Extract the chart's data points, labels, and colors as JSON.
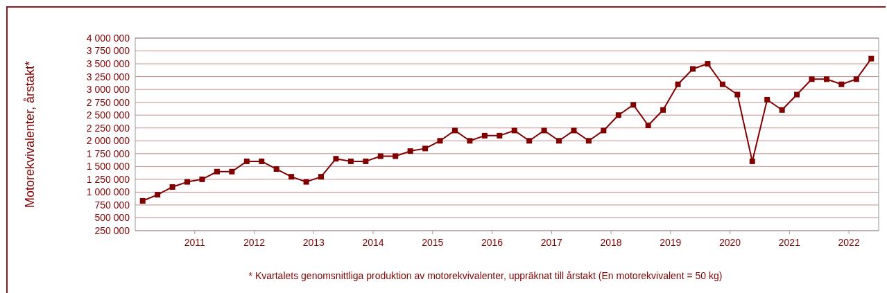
{
  "chart_data": {
    "type": "line",
    "ylabel": "Motorekvivalenter, årstakt*",
    "annotations": [
      "* Kvartalets genomsnittliga produktion av motorekvivalenter, uppräknat till årstakt (En motorekvivalent = 50 kg)"
    ],
    "x": [
      2010.125,
      2010.375,
      2010.625,
      2010.875,
      2011.125,
      2011.375,
      2011.625,
      2011.875,
      2012.125,
      2012.375,
      2012.625,
      2012.875,
      2013.125,
      2013.375,
      2013.625,
      2013.875,
      2014.125,
      2014.375,
      2014.625,
      2014.875,
      2015.125,
      2015.375,
      2015.625,
      2015.875,
      2016.125,
      2016.375,
      2016.625,
      2016.875,
      2017.125,
      2017.375,
      2017.625,
      2017.875,
      2018.125,
      2018.375,
      2018.625,
      2018.875,
      2019.125,
      2019.375,
      2019.625,
      2019.875,
      2020.125,
      2020.375,
      2020.625,
      2020.875,
      2021.125,
      2021.375,
      2021.625,
      2021.875,
      2022.125,
      2022.375
    ],
    "series": [
      {
        "color": "#800000",
        "values": [
          830000,
          950000,
          1100000,
          1200000,
          1250000,
          1400000,
          1400000,
          1600000,
          1600000,
          1450000,
          1300000,
          1200000,
          1300000,
          1650000,
          1600000,
          1600000,
          1700000,
          1700000,
          1800000,
          1850000,
          2000000,
          2200000,
          2000000,
          2100000,
          2100000,
          2200000,
          2000000,
          2200000,
          2000000,
          2200000,
          2000000,
          2200000,
          2500000,
          2700000,
          2300000,
          2600000,
          3100000,
          3400000,
          3500000,
          3100000,
          2900000,
          1600000,
          2800000,
          2600000,
          2900000,
          3200000,
          3200000,
          3100000,
          3200000,
          3600000
        ]
      }
    ],
    "xlim": [
      2010,
      2022.5
    ],
    "xticks": [
      2011,
      2012,
      2013,
      2014,
      2015,
      2016,
      2017,
      2018,
      2019,
      2020,
      2021,
      2022
    ],
    "ylim": [
      250000,
      4000000
    ],
    "yticks": [
      {
        "value": 250000,
        "label": "250 000"
      },
      {
        "value": 500000,
        "label": "500 000"
      },
      {
        "value": 750000,
        "label": "750 000"
      },
      {
        "value": 1000000,
        "label": "1 000 000"
      },
      {
        "value": 1250000,
        "label": "1 250 000"
      },
      {
        "value": 1500000,
        "label": "1 500 000"
      },
      {
        "value": 1750000,
        "label": "1 750 000"
      },
      {
        "value": 2000000,
        "label": "2 000 000"
      },
      {
        "value": 2250000,
        "label": "2 250 000"
      },
      {
        "value": 2500000,
        "label": "2 500 000"
      },
      {
        "value": 2750000,
        "label": "2 750 000"
      },
      {
        "value": 3000000,
        "label": "3 000 000"
      },
      {
        "value": 3250000,
        "label": "3 250 000"
      },
      {
        "value": 3500000,
        "label": "3 500 000"
      },
      {
        "value": 3750000,
        "label": "3 750 000"
      },
      {
        "value": 4000000,
        "label": "4 000 000"
      }
    ],
    "grid": "y",
    "marker": "square",
    "line_style": "solid"
  }
}
